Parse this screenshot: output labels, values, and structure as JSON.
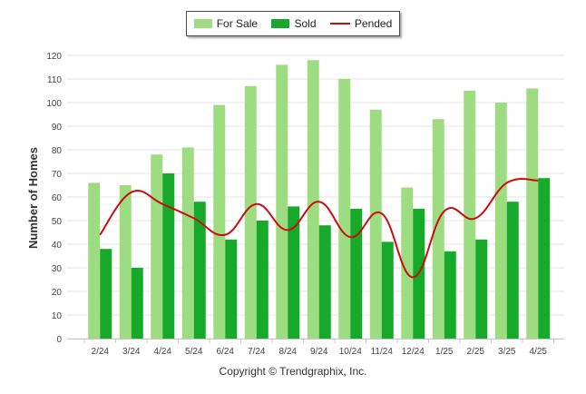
{
  "legend": {
    "for_sale": "For Sale",
    "sold": "Sold",
    "pended": "Pended"
  },
  "footer": {
    "copyright": "Copyright © Trendgraphix, Inc."
  },
  "colors": {
    "for_sale": "#9edc82",
    "sold": "#16a92a",
    "pended": "#c80e0e",
    "grid": "#e6e6e6"
  },
  "chart_data": {
    "type": "bar",
    "title": "",
    "xlabel": "",
    "ylabel": "Number of Homes",
    "ylim": [
      0,
      120
    ],
    "yticks": [
      0,
      10,
      20,
      30,
      40,
      50,
      60,
      70,
      80,
      90,
      100,
      110,
      120
    ],
    "grid": true,
    "legend_position": "top",
    "categories": [
      "2/24",
      "3/24",
      "4/24",
      "5/24",
      "6/24",
      "7/24",
      "8/24",
      "9/24",
      "10/24",
      "11/24",
      "12/24",
      "1/25",
      "2/25",
      "3/25",
      "4/25"
    ],
    "series": [
      {
        "name": "For Sale",
        "type": "bar",
        "values": [
          66,
          65,
          78,
          81,
          99,
          107,
          116,
          118,
          110,
          97,
          64,
          93,
          105,
          100,
          106
        ]
      },
      {
        "name": "Sold",
        "type": "bar",
        "values": [
          38,
          30,
          70,
          58,
          42,
          50,
          56,
          48,
          55,
          41,
          55,
          37,
          42,
          58,
          68
        ]
      },
      {
        "name": "Pended",
        "type": "line",
        "values": [
          44,
          62,
          57,
          51,
          44,
          57,
          46,
          58,
          43,
          53,
          26,
          54,
          51,
          66,
          67
        ]
      }
    ]
  }
}
